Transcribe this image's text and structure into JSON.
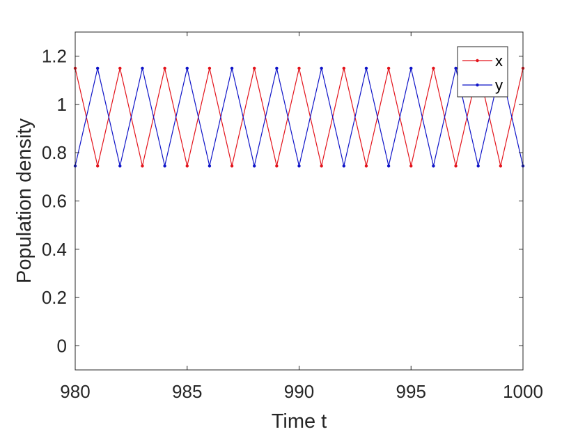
{
  "chart_data": {
    "type": "line",
    "title": "",
    "xlabel": "Time t",
    "ylabel": "Population density",
    "xlim": [
      980,
      1000
    ],
    "ylim": [
      -0.1,
      1.3
    ],
    "xticks": [
      "980",
      "985",
      "990",
      "995",
      "1000"
    ],
    "yticks": [
      "0",
      "0.2",
      "0.4",
      "0.6",
      "0.8",
      "1",
      "1.2"
    ],
    "grid": false,
    "legend_position": "top-right",
    "x": [
      980,
      981,
      982,
      983,
      984,
      985,
      986,
      987,
      988,
      989,
      990,
      991,
      992,
      993,
      994,
      995,
      996,
      997,
      998,
      999,
      1000
    ],
    "series": [
      {
        "name": "x",
        "color": "#e3131b",
        "values": [
          1.15,
          0.745,
          1.15,
          0.745,
          1.15,
          0.745,
          1.15,
          0.745,
          1.15,
          0.745,
          1.15,
          0.745,
          1.15,
          0.745,
          1.15,
          0.745,
          1.15,
          0.745,
          1.15,
          0.745,
          1.15
        ]
      },
      {
        "name": "y",
        "color": "#0f14c8",
        "values": [
          0.745,
          1.15,
          0.745,
          1.15,
          0.745,
          1.15,
          0.745,
          1.15,
          0.745,
          1.15,
          0.745,
          1.15,
          0.745,
          1.15,
          0.745,
          1.15,
          0.745,
          1.15,
          0.745,
          1.15,
          0.745
        ]
      }
    ]
  }
}
